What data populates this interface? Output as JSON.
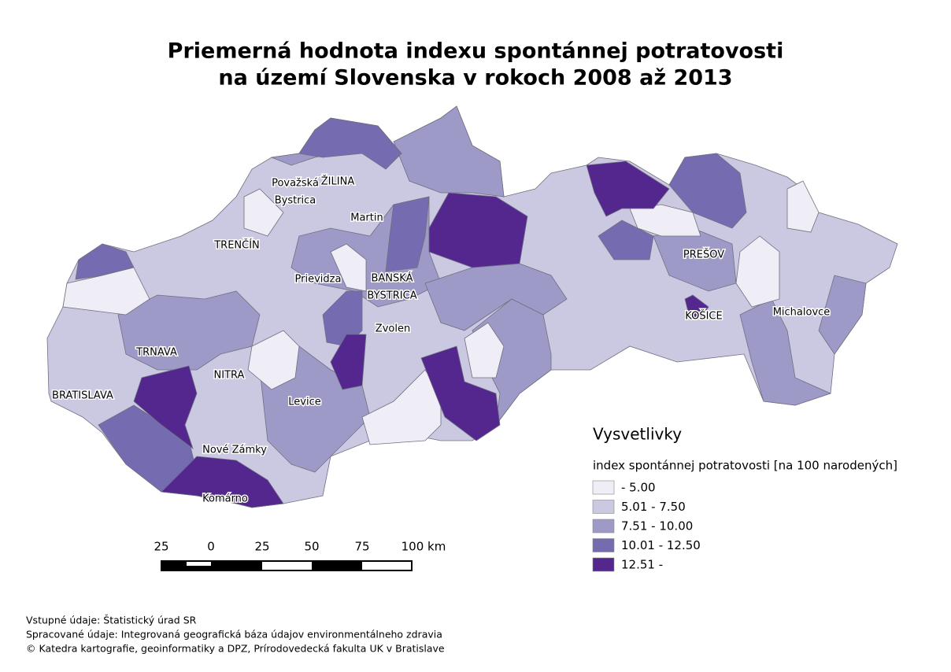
{
  "title": [
    "Priemerná hodnota indexu spontánnej potratovosti",
    "na území Slovenska v rokoch 2008 až 2013"
  ],
  "places": [
    {
      "lines": [
        "ŽILINA"
      ]
    },
    {
      "lines": [
        "Považská",
        "Bystrica"
      ]
    },
    {
      "lines": [
        "Martin"
      ]
    },
    {
      "lines": [
        "TRENČÍN"
      ]
    },
    {
      "lines": [
        "Prievidza"
      ]
    },
    {
      "lines": [
        "BANSKÁ",
        "BYSTRICA"
      ]
    },
    {
      "lines": [
        "Zvolen"
      ]
    },
    {
      "lines": [
        "TRNAVA"
      ]
    },
    {
      "lines": [
        "NITRA"
      ]
    },
    {
      "lines": [
        "BRATISLAVA"
      ]
    },
    {
      "lines": [
        "Levice"
      ]
    },
    {
      "lines": [
        "Nové Zámky"
      ]
    },
    {
      "lines": [
        "Komárno"
      ]
    },
    {
      "lines": [
        "PREŠOV"
      ]
    },
    {
      "lines": [
        "KOŠICE"
      ]
    },
    {
      "lines": [
        "Michalovce"
      ]
    }
  ],
  "legend": {
    "title": "Vysvetlivky",
    "subtitle": "index spontánnej potratovosti [na 100 narodených]",
    "classes": [
      {
        "label": " - 5.00",
        "color": "#efedf5"
      },
      {
        "label": "5.01 - 7.50",
        "color": "#cbc9e2"
      },
      {
        "label": "7.51 - 10.00",
        "color": "#9e9ac8"
      },
      {
        "label": "10.01 - 12.50",
        "color": "#756bb1"
      },
      {
        "label": "12.51 -",
        "color": "#54278f"
      }
    ]
  },
  "scale_bar": {
    "labels": [
      "25",
      "0",
      "25",
      "50",
      "75",
      "100 km"
    ]
  },
  "sources": [
    "Vstupné údaje: Štatistický úrad SR",
    "Spracované údaje: Integrovaná geografická báza údajov environmentálneho zdravia",
    "© Katedra kartografie, geoinformatiky a DPZ, Prírodovedecká fakulta UK v Bratislave"
  ]
}
